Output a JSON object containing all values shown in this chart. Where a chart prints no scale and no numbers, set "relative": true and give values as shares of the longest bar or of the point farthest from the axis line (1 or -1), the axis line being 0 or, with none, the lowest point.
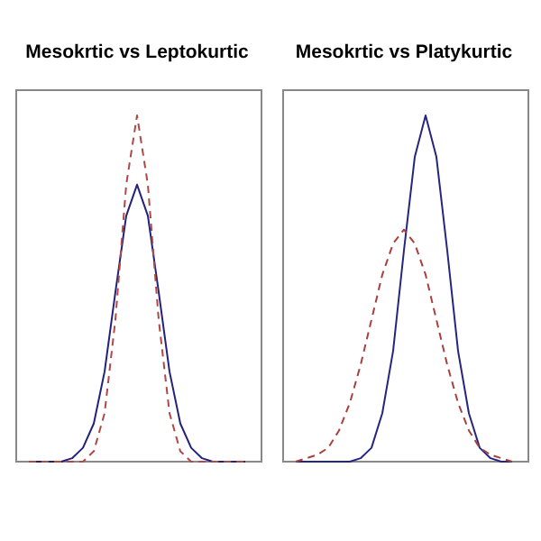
{
  "chart_data": [
    {
      "type": "line",
      "title": "Mesokrtic vs Leptokurtic",
      "relative": true,
      "categories": [
        null,
        null,
        null,
        null,
        null,
        null,
        null,
        null,
        null,
        null,
        null,
        null,
        null,
        null,
        null,
        null,
        null,
        null,
        null,
        null,
        null
      ],
      "series": [
        {
          "color": "#22227a",
          "line_style": "solid",
          "values": [
            0,
            0,
            0,
            0,
            0.01,
            0.04,
            0.11,
            0.26,
            0.49,
            0.71,
            0.8,
            0.71,
            0.49,
            0.26,
            0.11,
            0.04,
            0.01,
            0,
            0,
            0,
            0
          ]
        },
        {
          "color": "#b04848",
          "line_style": "dashed",
          "values": [
            0,
            0,
            0,
            0,
            0,
            0,
            0.03,
            0.14,
            0.41,
            0.8,
            1,
            0.8,
            0.41,
            0.14,
            0.03,
            0,
            0,
            0,
            0,
            0,
            0
          ]
        }
      ]
    },
    {
      "type": "line",
      "title": "Mesokrtic vs Platykurtic",
      "relative": true,
      "categories": [
        null,
        null,
        null,
        null,
        null,
        null,
        null,
        null,
        null,
        null,
        null,
        null,
        null,
        null,
        null,
        null,
        null,
        null,
        null,
        null,
        null
      ],
      "series": [
        {
          "color": "#262680",
          "line_style": "solid",
          "values": [
            0,
            0,
            0,
            0,
            0,
            0,
            0.01,
            0.04,
            0.14,
            0.32,
            0.61,
            0.88,
            1,
            0.88,
            0.61,
            0.32,
            0.14,
            0.04,
            0.01,
            0,
            0
          ]
        },
        {
          "color": "#a84040",
          "line_style": "dashed",
          "values": [
            0,
            0.01,
            0.02,
            0.04,
            0.09,
            0.17,
            0.28,
            0.41,
            0.54,
            0.63,
            0.67,
            0.63,
            0.54,
            0.41,
            0.28,
            0.17,
            0.09,
            0.04,
            0.02,
            0.01,
            0
          ]
        }
      ]
    }
  ]
}
